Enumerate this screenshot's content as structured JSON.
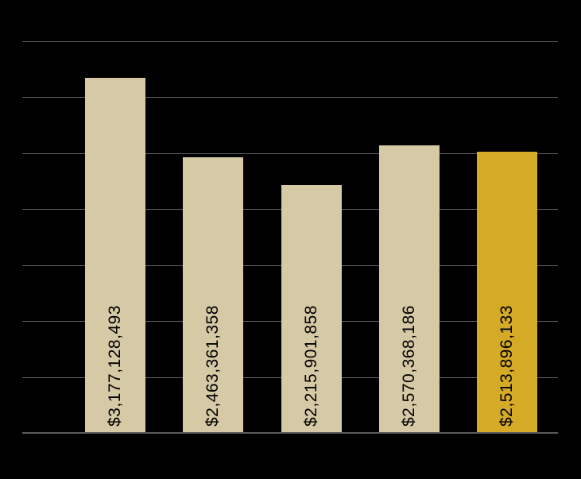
{
  "chart_data": {
    "type": "bar",
    "title": "",
    "xlabel": "",
    "ylabel": "",
    "values": [
      3177128493,
      2463361358,
      2215901858,
      2570368186,
      2513896133
    ],
    "data_labels": [
      "$3,177,128,493",
      "$2,463,361,358",
      "$2,215,901,858",
      "$2,570,368,186",
      "$2,513,896,133"
    ],
    "ylim": [
      0,
      3500000000
    ],
    "gridline_interval": 500000000,
    "grid": true,
    "legend": false,
    "category_tick_labels_visible": false,
    "value_axis_labels_visible": false,
    "data_label_rotation_degrees": -90,
    "data_label_position": "inside-base",
    "colors": {
      "background": "#000000",
      "bar_default": "#D6C9A6",
      "bar_highlight": "#D4AA27",
      "gridline": "#646464",
      "axis_line": "#5A5A5A",
      "data_label_text": "#000000"
    },
    "highlighted_index": 4
  }
}
